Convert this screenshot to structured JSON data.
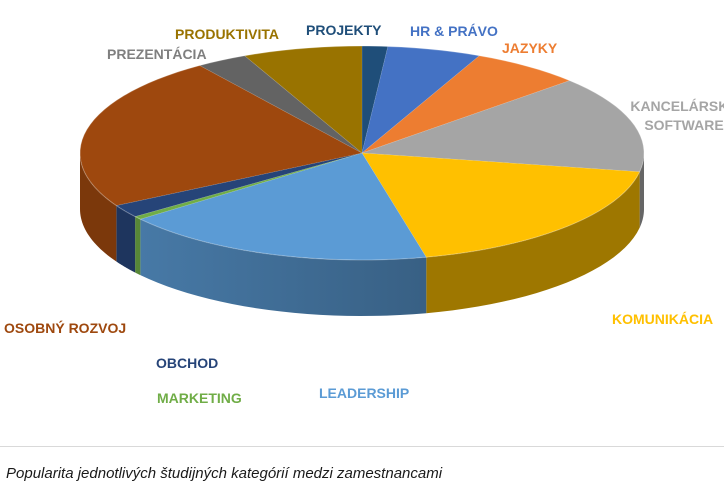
{
  "chart_data": {
    "type": "pie",
    "style": "3d",
    "title": "",
    "categories": [
      "PROJEKTY",
      "HR & PRÁVO",
      "JAZYKY",
      "KANCELÁRSKÝ SOFTWARE",
      "KOMUNIKÁCIA",
      "LEADERSHIP",
      "MARKETING",
      "OBCHOD",
      "OSOBNÝ ROZVOJ",
      "PREZENTÁCIA",
      "PRODUKTIVITA"
    ],
    "values": [
      1.5,
      5.5,
      6.5,
      15,
      19,
      18.5,
      0.5,
      2,
      24,
      3,
      7
    ],
    "colors": [
      "#1f4e79",
      "#4472c4",
      "#ed7d31",
      "#a5a5a5",
      "#ffc000",
      "#5b9bd5",
      "#70ad47",
      "#264478",
      "#9e480e",
      "#636363",
      "#997300"
    ],
    "label_colors": [
      "#1f4e79",
      "#4472c4",
      "#ed7d31",
      "#a5a5a5",
      "#ffc000",
      "#5b9bd5",
      "#70ad47",
      "#264478",
      "#9e480e",
      "#7f7f7f",
      "#997300"
    ],
    "legend": "none"
  },
  "caption": "Popularita jednotlivých študijných kategórií medzi zamestnancami"
}
